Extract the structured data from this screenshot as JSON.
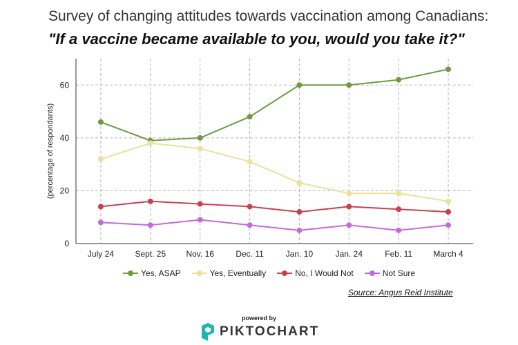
{
  "title": "Survey of changing attitudes towards vaccination among Canadians:",
  "subtitle": "\"If a vaccine became available to you, would you take it?\"",
  "source": "Source: Angus Reid Institute",
  "powered_by": "powered by",
  "brand": "PIKTOCHART",
  "chart_data": {
    "type": "line",
    "title": "Survey of changing attitudes towards vaccination among Canadians:",
    "subtitle": "\"If a vaccine became available to you, would you take it?\"",
    "xlabel": "",
    "ylabel": "(percentage of respondants)",
    "categories": [
      "July 24",
      "Sept. 25",
      "Nov. 16",
      "Dec. 11",
      "Jan. 10",
      "Jan. 24",
      "Feb. 11",
      "March 4"
    ],
    "ylim": [
      0,
      70
    ],
    "yticks": [
      0,
      20,
      40,
      60
    ],
    "grid": true,
    "legend_position": "bottom",
    "series": [
      {
        "name": "Yes, ASAP",
        "color": "#6f9a42",
        "values": [
          46,
          39,
          40,
          48,
          60,
          60,
          62,
          66
        ]
      },
      {
        "name": "Yes, Eventually",
        "color": "#e9e29a",
        "values": [
          32,
          38,
          36,
          31,
          23,
          19,
          19,
          16
        ]
      },
      {
        "name": "No, I Would Not",
        "color": "#c8414f",
        "values": [
          14,
          16,
          15,
          14,
          12,
          14,
          13,
          12
        ]
      },
      {
        "name": "Not Sure",
        "color": "#c26bd9",
        "values": [
          8,
          7,
          9,
          7,
          5,
          7,
          5,
          7
        ]
      }
    ]
  }
}
